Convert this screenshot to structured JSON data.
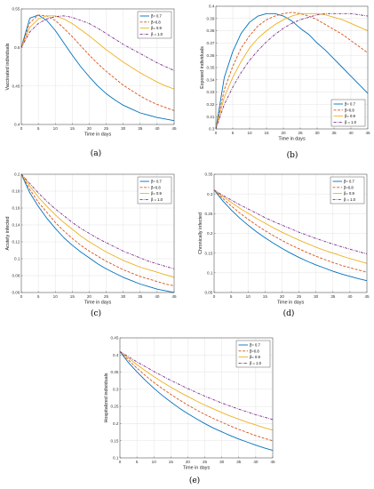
{
  "chart_data": [
    {
      "type": "line",
      "caption": "(a)",
      "xlabel": "Time in days",
      "ylabel": "Vaccinated individuals",
      "xlim": [
        0,
        45
      ],
      "ylim": [
        0.4,
        0.55
      ],
      "xticks": [
        0,
        5,
        10,
        15,
        20,
        25,
        30,
        35,
        40,
        45
      ],
      "yticks": [
        0.4,
        0.45,
        0.5,
        0.55
      ],
      "grid": true,
      "legend_position": "top-right",
      "x": [
        0,
        2.5,
        5,
        7.5,
        10,
        12.5,
        15,
        17.5,
        20,
        22.5,
        25,
        27.5,
        30,
        32.5,
        35,
        37.5,
        40,
        42.5,
        45
      ],
      "series": [
        {
          "name": "β= 0.7",
          "color": "#0072BD",
          "dash": "solid",
          "values": [
            0.5,
            0.538,
            0.542,
            0.535,
            0.522,
            0.506,
            0.49,
            0.475,
            0.462,
            0.45,
            0.44,
            0.432,
            0.425,
            0.42,
            0.415,
            0.412,
            0.409,
            0.407,
            0.405
          ]
        },
        {
          "name": "β=0.8",
          "color": "#D95319",
          "dash": "dashed",
          "values": [
            0.5,
            0.532,
            0.542,
            0.541,
            0.535,
            0.525,
            0.514,
            0.502,
            0.49,
            0.479,
            0.469,
            0.46,
            0.451,
            0.444,
            0.437,
            0.431,
            0.426,
            0.422,
            0.418
          ]
        },
        {
          "name": "β= 0.9",
          "color": "#EDB120",
          "dash": "solid",
          "values": [
            0.5,
            0.526,
            0.537,
            0.541,
            0.541,
            0.537,
            0.531,
            0.523,
            0.515,
            0.506,
            0.497,
            0.489,
            0.481,
            0.474,
            0.467,
            0.461,
            0.455,
            0.45,
            0.446
          ]
        },
        {
          "name": "β = 1.0",
          "color": "#7E2F8E",
          "dash": "dashdot",
          "values": [
            0.5,
            0.52,
            0.531,
            0.537,
            0.54,
            0.541,
            0.539,
            0.535,
            0.531,
            0.525,
            0.518,
            0.511,
            0.504,
            0.498,
            0.492,
            0.486,
            0.48,
            0.475,
            0.47
          ]
        }
      ]
    },
    {
      "type": "line",
      "caption": "(b)",
      "xlabel": "Time in days",
      "ylabel": "Exposed individuals",
      "xlim": [
        0,
        45
      ],
      "ylim": [
        0.3,
        0.4
      ],
      "xticks": [
        0,
        5,
        10,
        15,
        20,
        25,
        30,
        35,
        40,
        45
      ],
      "yticks": [
        0.3,
        0.31,
        0.32,
        0.33,
        0.34,
        0.35,
        0.36,
        0.37,
        0.38,
        0.39,
        0.4
      ],
      "grid": true,
      "legend_position": "bottom-right",
      "x": [
        0,
        2.5,
        5,
        7.5,
        10,
        12.5,
        15,
        17.5,
        20,
        22.5,
        25,
        27.5,
        30,
        32.5,
        35,
        37.5,
        40,
        42.5,
        45
      ],
      "series": [
        {
          "name": "β= 0.7",
          "color": "#0072BD",
          "dash": "solid",
          "values": [
            0.3,
            0.342,
            0.363,
            0.378,
            0.387,
            0.392,
            0.394,
            0.394,
            0.392,
            0.388,
            0.382,
            0.377,
            0.37,
            0.364,
            0.357,
            0.35,
            0.343,
            0.336,
            0.329
          ]
        },
        {
          "name": "β=0.8",
          "color": "#D95319",
          "dash": "dashed",
          "values": [
            0.3,
            0.332,
            0.351,
            0.366,
            0.376,
            0.384,
            0.389,
            0.392,
            0.394,
            0.395,
            0.394,
            0.392,
            0.389,
            0.385,
            0.381,
            0.377,
            0.372,
            0.367,
            0.362
          ]
        },
        {
          "name": "β= 0.9",
          "color": "#EDB120",
          "dash": "solid",
          "values": [
            0.3,
            0.326,
            0.342,
            0.355,
            0.366,
            0.374,
            0.38,
            0.385,
            0.389,
            0.392,
            0.394,
            0.394,
            0.394,
            0.393,
            0.391,
            0.389,
            0.386,
            0.383,
            0.38
          ]
        },
        {
          "name": "β = 1.0",
          "color": "#7E2F8E",
          "dash": "dashdot",
          "values": [
            0.3,
            0.32,
            0.334,
            0.346,
            0.356,
            0.364,
            0.371,
            0.377,
            0.382,
            0.386,
            0.389,
            0.391,
            0.393,
            0.394,
            0.394,
            0.394,
            0.394,
            0.393,
            0.392
          ]
        }
      ]
    },
    {
      "type": "line",
      "caption": "(c)",
      "xlabel": "Time in days",
      "ylabel": "Acutely infected",
      "xlim": [
        0,
        45
      ],
      "ylim": [
        0.06,
        0.2
      ],
      "xticks": [
        0,
        5,
        10,
        15,
        20,
        25,
        30,
        35,
        40,
        45
      ],
      "yticks": [
        0.06,
        0.08,
        0.1,
        0.12,
        0.14,
        0.16,
        0.18,
        0.2
      ],
      "grid": true,
      "legend_position": "top-right",
      "x": [
        0,
        2.5,
        5,
        7.5,
        10,
        12.5,
        15,
        17.5,
        20,
        22.5,
        25,
        27.5,
        30,
        32.5,
        35,
        37.5,
        40,
        42.5,
        45
      ],
      "series": [
        {
          "name": "β= 0.7",
          "color": "#0072BD",
          "dash": "solid",
          "values": [
            0.2,
            0.178,
            0.162,
            0.148,
            0.136,
            0.125,
            0.116,
            0.108,
            0.101,
            0.094,
            0.088,
            0.083,
            0.078,
            0.074,
            0.07,
            0.067,
            0.064,
            0.062,
            0.06
          ]
        },
        {
          "name": "β=0.8",
          "color": "#D95319",
          "dash": "dashed",
          "values": [
            0.2,
            0.182,
            0.167,
            0.155,
            0.143,
            0.133,
            0.124,
            0.116,
            0.109,
            0.103,
            0.097,
            0.092,
            0.087,
            0.083,
            0.079,
            0.076,
            0.073,
            0.07,
            0.068
          ]
        },
        {
          "name": "β= 0.9",
          "color": "#EDB120",
          "dash": "solid",
          "values": [
            0.2,
            0.186,
            0.173,
            0.162,
            0.152,
            0.143,
            0.135,
            0.127,
            0.12,
            0.114,
            0.108,
            0.103,
            0.098,
            0.094,
            0.09,
            0.087,
            0.084,
            0.081,
            0.078
          ]
        },
        {
          "name": "β = 1.0",
          "color": "#7E2F8E",
          "dash": "dashdot",
          "values": [
            0.2,
            0.189,
            0.178,
            0.168,
            0.159,
            0.151,
            0.143,
            0.136,
            0.13,
            0.124,
            0.119,
            0.114,
            0.109,
            0.105,
            0.101,
            0.097,
            0.094,
            0.091,
            0.088
          ]
        }
      ]
    },
    {
      "type": "line",
      "caption": "(d)",
      "xlabel": "Time in days",
      "ylabel": "Chronically infected",
      "xlim": [
        0,
        45
      ],
      "ylim": [
        0.05,
        0.35
      ],
      "xticks": [
        0,
        5,
        10,
        15,
        20,
        25,
        30,
        35,
        40,
        45
      ],
      "yticks": [
        0.05,
        0.1,
        0.15,
        0.2,
        0.25,
        0.3,
        0.35
      ],
      "grid": true,
      "legend_position": "top-right",
      "x": [
        0,
        2.5,
        5,
        7.5,
        10,
        12.5,
        15,
        17.5,
        20,
        22.5,
        25,
        27.5,
        30,
        32.5,
        35,
        37.5,
        40,
        42.5,
        45
      ],
      "series": [
        {
          "name": "β= 0.7",
          "color": "#0072BD",
          "dash": "solid",
          "values": [
            0.31,
            0.283,
            0.26,
            0.239,
            0.221,
            0.204,
            0.189,
            0.175,
            0.162,
            0.15,
            0.139,
            0.129,
            0.12,
            0.112,
            0.104,
            0.097,
            0.091,
            0.085,
            0.08
          ]
        },
        {
          "name": "β=0.8",
          "color": "#D95319",
          "dash": "dashed",
          "values": [
            0.31,
            0.289,
            0.27,
            0.252,
            0.236,
            0.221,
            0.207,
            0.194,
            0.182,
            0.171,
            0.161,
            0.151,
            0.142,
            0.134,
            0.126,
            0.119,
            0.113,
            0.107,
            0.102
          ]
        },
        {
          "name": "β= 0.9",
          "color": "#EDB120",
          "dash": "solid",
          "values": [
            0.31,
            0.294,
            0.279,
            0.264,
            0.251,
            0.238,
            0.226,
            0.214,
            0.203,
            0.193,
            0.183,
            0.174,
            0.165,
            0.157,
            0.15,
            0.143,
            0.136,
            0.13,
            0.124
          ]
        },
        {
          "name": "β = 1.0",
          "color": "#7E2F8E",
          "dash": "dashdot",
          "values": [
            0.31,
            0.297,
            0.285,
            0.273,
            0.262,
            0.251,
            0.24,
            0.23,
            0.221,
            0.212,
            0.203,
            0.195,
            0.187,
            0.18,
            0.173,
            0.166,
            0.16,
            0.154,
            0.148
          ]
        }
      ]
    },
    {
      "type": "line",
      "caption": "(e)",
      "xlabel": "Time in days",
      "ylabel": "Hospitalized individuals",
      "xlim": [
        0,
        45
      ],
      "ylim": [
        0.1,
        0.45
      ],
      "xticks": [
        0,
        5,
        10,
        15,
        20,
        25,
        30,
        35,
        40,
        45
      ],
      "yticks": [
        0.1,
        0.15,
        0.2,
        0.25,
        0.3,
        0.35,
        0.4,
        0.45
      ],
      "grid": true,
      "legend_position": "top-right",
      "x": [
        0,
        2.5,
        5,
        7.5,
        10,
        12.5,
        15,
        17.5,
        20,
        22.5,
        25,
        27.5,
        30,
        32.5,
        35,
        37.5,
        40,
        42.5,
        45
      ],
      "series": [
        {
          "name": "β= 0.7",
          "color": "#0072BD",
          "dash": "solid",
          "values": [
            0.41,
            0.378,
            0.351,
            0.326,
            0.303,
            0.282,
            0.263,
            0.245,
            0.229,
            0.214,
            0.2,
            0.187,
            0.176,
            0.165,
            0.155,
            0.146,
            0.137,
            0.129,
            0.122
          ]
        },
        {
          "name": "β=0.8",
          "color": "#D95319",
          "dash": "dashed",
          "values": [
            0.41,
            0.385,
            0.362,
            0.34,
            0.32,
            0.302,
            0.285,
            0.269,
            0.254,
            0.24,
            0.227,
            0.215,
            0.204,
            0.193,
            0.183,
            0.174,
            0.165,
            0.157,
            0.15
          ]
        },
        {
          "name": "β= 0.9",
          "color": "#EDB120",
          "dash": "solid",
          "values": [
            0.41,
            0.391,
            0.372,
            0.354,
            0.337,
            0.321,
            0.306,
            0.292,
            0.279,
            0.266,
            0.254,
            0.243,
            0.232,
            0.222,
            0.213,
            0.204,
            0.196,
            0.188,
            0.181
          ]
        },
        {
          "name": "β = 1.0",
          "color": "#7E2F8E",
          "dash": "dashdot",
          "values": [
            0.41,
            0.395,
            0.38,
            0.366,
            0.352,
            0.339,
            0.326,
            0.314,
            0.302,
            0.291,
            0.28,
            0.27,
            0.26,
            0.251,
            0.242,
            0.234,
            0.226,
            0.219,
            0.212
          ]
        }
      ]
    }
  ]
}
